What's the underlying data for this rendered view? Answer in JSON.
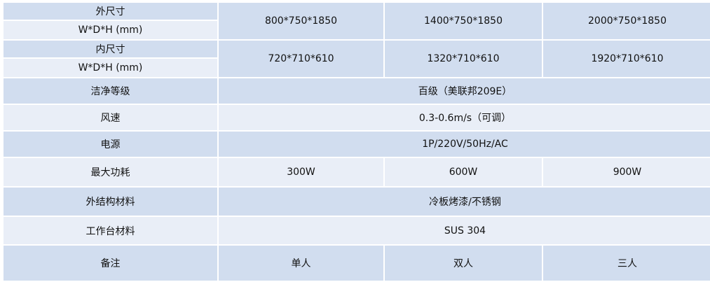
{
  "rows": {
    "outer_size": {
      "label1": "外尺寸",
      "label2": "W*D*H (mm)",
      "values": [
        "800*750*1850",
        "1400*750*1850",
        "2000*750*1850"
      ]
    },
    "inner_size": {
      "label1": "内尺寸",
      "label2": "W*D*H (mm)",
      "values": [
        "720*710*610",
        "1320*710*610",
        "1920*710*610"
      ]
    },
    "cleanliness": {
      "label": "洁净等级",
      "value": "百级（美联邦209E）"
    },
    "air_speed": {
      "label": "风速",
      "value": "0.3-0.6m/s（可调）"
    },
    "power_supply": {
      "label": "电源",
      "value": "1P/220V/50Hz/AC"
    },
    "max_power": {
      "label": "最大功耗",
      "values": [
        "300W",
        "600W",
        "900W"
      ]
    },
    "outer_material": {
      "label": "外结构材料",
      "value": "冷板烤漆/不锈钢"
    },
    "worktable_material": {
      "label": "工作台材料",
      "value": "SUS 304"
    },
    "remarks": {
      "label": "备注",
      "values": [
        "单人",
        "双人",
        "三人"
      ]
    }
  },
  "colors": {
    "dark_row": "#d1ddef",
    "light_row": "#e9eef7",
    "border": "#ffffff"
  }
}
